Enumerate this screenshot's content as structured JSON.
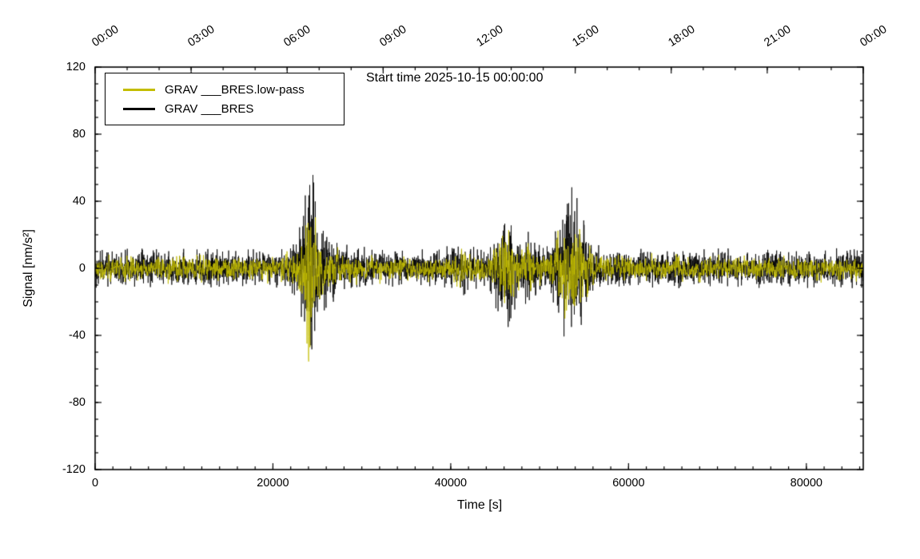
{
  "chart_data": {
    "type": "line",
    "title": "Start time 2025-10-15 00:00:00",
    "xlabel": "Time [s]",
    "ylabel": "Signal [nm/s²]",
    "xlim": [
      0,
      86400
    ],
    "ylim": [
      -120,
      120
    ],
    "x_ticks": [
      0,
      20000,
      40000,
      60000,
      80000
    ],
    "x_minor_step": 2000,
    "y_ticks": [
      -120,
      -80,
      -40,
      0,
      40,
      80,
      120
    ],
    "y_minor_step": 10,
    "grid": false,
    "legend_position": "top-left",
    "top_axis": {
      "tick_step_s": 10800,
      "minor_step_s": 3600,
      "labels": [
        "00:00",
        "03:00",
        "06:00",
        "09:00",
        "12:00",
        "15:00",
        "18:00",
        "21:00",
        "00:00"
      ]
    },
    "legend": [
      {
        "label": "GRAV ___BRES.low-pass",
        "color": "#c3bd00"
      },
      {
        "label": "GRAV ___BRES",
        "color": "#000000"
      }
    ],
    "sample_step_s": 20,
    "noise_seed": 42,
    "series": [
      {
        "name": "GRAV ___BRES",
        "color": "#000000",
        "low_pass": false,
        "amplitude_envelope": [
          [
            0,
            12
          ],
          [
            20000,
            12
          ],
          [
            22000,
            15
          ],
          [
            23300,
            32
          ],
          [
            24100,
            88
          ],
          [
            24600,
            60
          ],
          [
            25200,
            35
          ],
          [
            26500,
            22
          ],
          [
            28500,
            15
          ],
          [
            31000,
            12
          ],
          [
            39000,
            12
          ],
          [
            40400,
            16
          ],
          [
            41100,
            23
          ],
          [
            42000,
            14
          ],
          [
            43500,
            12
          ],
          [
            44500,
            15
          ],
          [
            45400,
            32
          ],
          [
            46100,
            46
          ],
          [
            47000,
            30
          ],
          [
            48000,
            20
          ],
          [
            48700,
            25
          ],
          [
            49600,
            18
          ],
          [
            50500,
            15
          ],
          [
            51500,
            20
          ],
          [
            52400,
            38
          ],
          [
            53300,
            46
          ],
          [
            54000,
            52
          ],
          [
            54800,
            38
          ],
          [
            55600,
            24
          ],
          [
            56600,
            15
          ],
          [
            58000,
            12
          ],
          [
            86400,
            12
          ]
        ]
      },
      {
        "name": "GRAV ___BRES.low-pass",
        "color": "#c3bd00",
        "low_pass": true,
        "amplitude_envelope": [
          [
            0,
            10
          ],
          [
            20000,
            10
          ],
          [
            22000,
            13
          ],
          [
            23300,
            27
          ],
          [
            24100,
            85
          ],
          [
            24600,
            52
          ],
          [
            25200,
            30
          ],
          [
            26500,
            18
          ],
          [
            28500,
            12
          ],
          [
            31000,
            10
          ],
          [
            39000,
            10
          ],
          [
            40400,
            13
          ],
          [
            41100,
            20
          ],
          [
            42000,
            12
          ],
          [
            43500,
            10
          ],
          [
            44500,
            12
          ],
          [
            45400,
            28
          ],
          [
            46100,
            43
          ],
          [
            47000,
            26
          ],
          [
            48000,
            16
          ],
          [
            48700,
            21
          ],
          [
            49600,
            15
          ],
          [
            50500,
            12
          ],
          [
            51500,
            17
          ],
          [
            52400,
            33
          ],
          [
            53300,
            41
          ],
          [
            54000,
            48
          ],
          [
            54800,
            33
          ],
          [
            55600,
            20
          ],
          [
            56600,
            12
          ],
          [
            58000,
            10
          ],
          [
            86400,
            10
          ]
        ]
      }
    ]
  }
}
